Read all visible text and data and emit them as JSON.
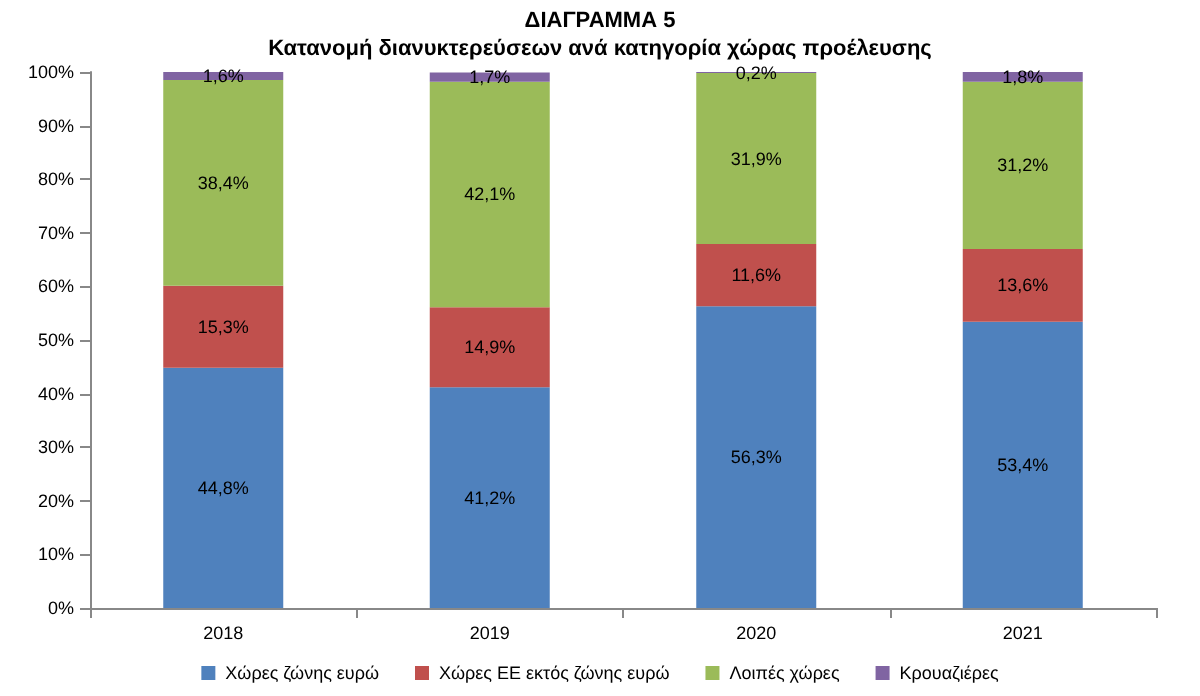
{
  "chart_data": {
    "type": "bar",
    "title": "ΔΙΑΓΡΑΜΜΑ 5",
    "subtitle": "Κατανομή διανυκτερεύσεων ανά κατηγορία χώρας προέλευσης",
    "categories": [
      "2018",
      "2019",
      "2020",
      "2021"
    ],
    "stacked": true,
    "legend": "bottom",
    "grid": false,
    "ylim": [
      0,
      100
    ],
    "yticks": [
      {
        "value": 0,
        "label": "0%"
      },
      {
        "value": 10,
        "label": "10%"
      },
      {
        "value": 20,
        "label": "20%"
      },
      {
        "value": 30,
        "label": "30%"
      },
      {
        "value": 40,
        "label": "40%"
      },
      {
        "value": 50,
        "label": "50%"
      },
      {
        "value": 60,
        "label": "60%"
      },
      {
        "value": 70,
        "label": "70%"
      },
      {
        "value": 80,
        "label": "80%"
      },
      {
        "value": 90,
        "label": "90%"
      },
      {
        "value": 100,
        "label": "100%"
      }
    ],
    "series": [
      {
        "name": "Χώρες ζώνης ευρώ",
        "color": "#4f81bd",
        "values": [
          44.8,
          41.2,
          56.3,
          53.4
        ],
        "value_labels": [
          "44,8%",
          "41,2%",
          "56,3%",
          "53,4%"
        ]
      },
      {
        "name": "Χώρες ΕΕ εκτός ζώνης ευρώ",
        "color": "#c0504d",
        "values": [
          15.3,
          14.9,
          11.6,
          13.6
        ],
        "value_labels": [
          "15,3%",
          "14,9%",
          "11,6%",
          "13,6%"
        ]
      },
      {
        "name": "Λοιπές χώρες",
        "color": "#9bbb59",
        "values": [
          38.4,
          42.1,
          31.9,
          31.2
        ],
        "value_labels": [
          "38,4%",
          "42,1%",
          "31,9%",
          "31,2%"
        ]
      },
      {
        "name": "Κρουαζιέρες",
        "color": "#8064a2",
        "values": [
          1.6,
          1.7,
          0.2,
          1.8
        ],
        "value_labels": [
          "1,6%",
          "1,7%",
          "0,2%",
          "1,8%"
        ]
      }
    ]
  }
}
